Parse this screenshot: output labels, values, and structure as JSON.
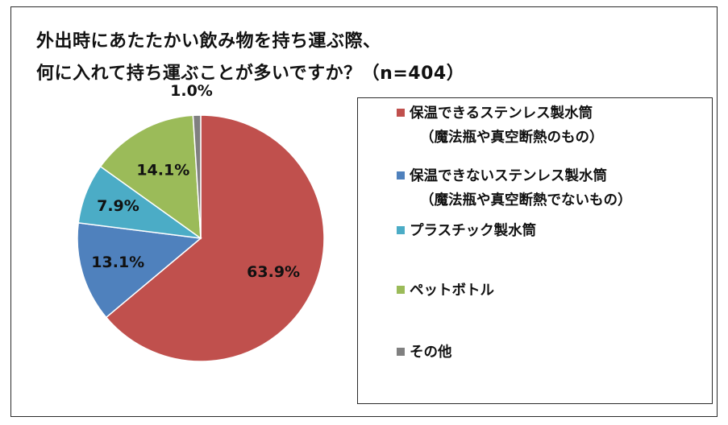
{
  "title": {
    "line1": "外出時にあたたかい飲み物を持ち運ぶ際、",
    "line2": "何に入れて持ち運ぶことが多いですか？（n=404）"
  },
  "chart_data": {
    "type": "pie",
    "categories": [
      "保温できるステンレス製水筒（魔法瓶や真空断熱のもの）",
      "保温できないステンレス製水筒（魔法瓶や真空断熱でないもの）",
      "プラスチック製水筒",
      "ペットボトル",
      "その他"
    ],
    "values": [
      63.9,
      13.1,
      7.9,
      14.1,
      1.0
    ],
    "data_labels": [
      "63.9%",
      "13.1%",
      "7.9%",
      "14.1%",
      "1.0%"
    ],
    "colors": [
      "#c0504d",
      "#4f81bd",
      "#4bacc6",
      "#9bbb59",
      "#808080"
    ],
    "legend": {
      "placement": "right",
      "items": [
        {
          "line1": "保温できるステンレス製水筒",
          "line2": "（魔法瓶や真空断熱のもの）"
        },
        {
          "line1": "保温できないステンレス製水筒",
          "line2": "（魔法瓶や真空断熱でないもの）"
        },
        {
          "line1": "プラスチック製水筒"
        },
        {
          "line1": "ペットボトル"
        },
        {
          "line1": "その他"
        }
      ]
    }
  }
}
